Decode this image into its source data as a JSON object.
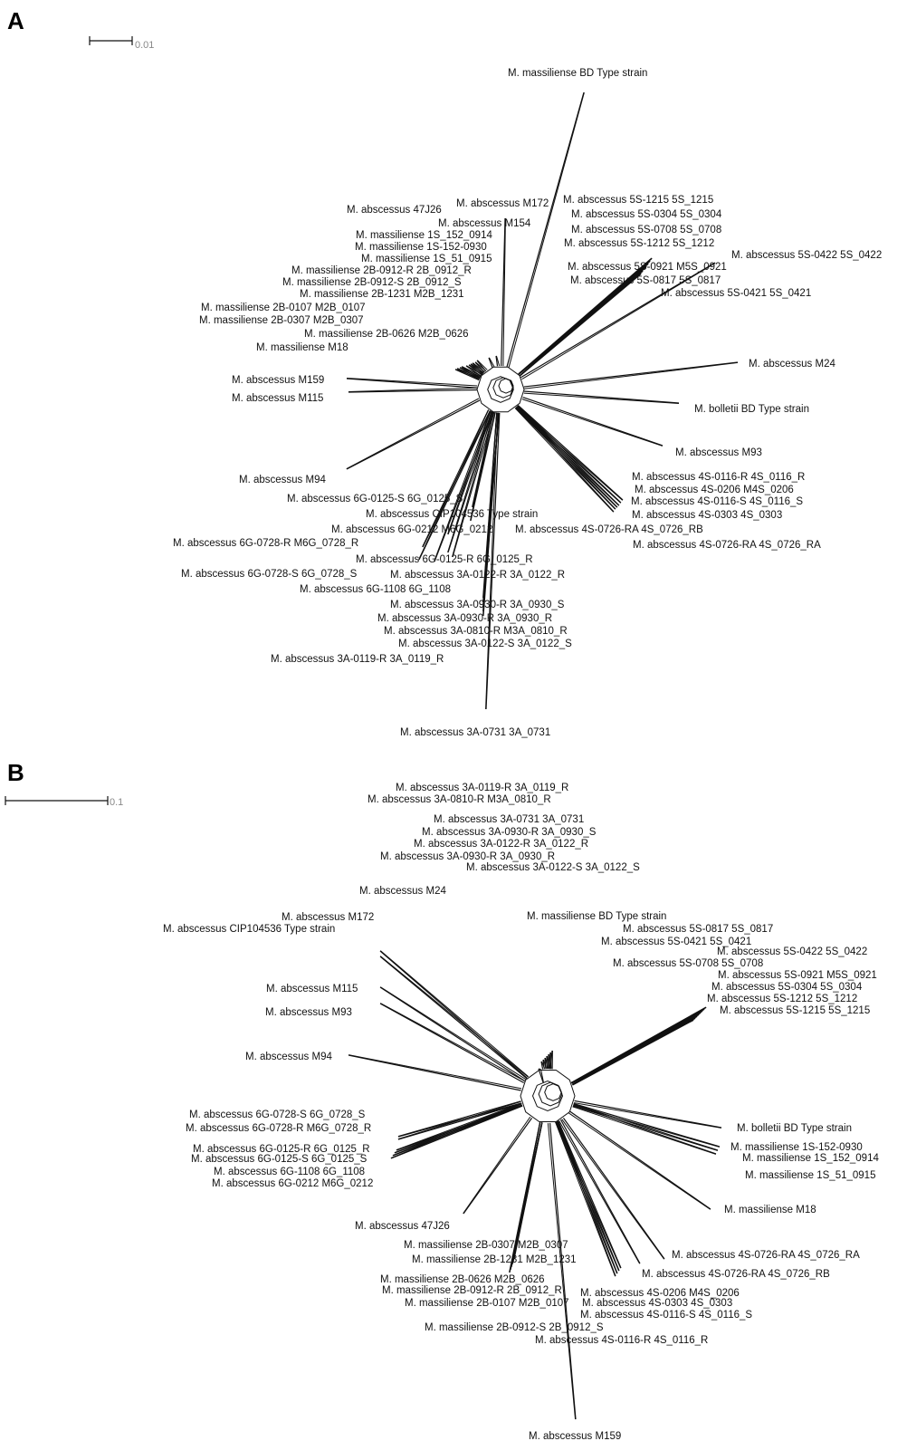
{
  "panels": [
    {
      "letter": "A",
      "scale_label": "0.01",
      "labels": [
        "M. massiliense BD Type strain",
        "M. abscessus M172",
        "M. abscessus 47J26",
        "M. abscessus M154",
        "M. massiliense 1S_152_0914",
        "M. massiliense 1S-152-0930",
        "M. massiliense 1S_51_0915",
        "M. massiliense 2B-0912-R 2B_0912_R",
        "M. massiliense 2B-0912-S 2B_0912_S",
        "M. massiliense 2B-1231 M2B_1231",
        "M. massiliense 2B-0107 M2B_0107",
        "M. massiliense 2B-0307 M2B_0307",
        "M. massiliense 2B-0626 M2B_0626",
        "M. massiliense M18",
        "M. abscessus M159",
        "M. abscessus M115",
        "M. abscessus 5S-1215 5S_1215",
        "M. abscessus 5S-0304 5S_0304",
        "M. abscessus 5S-0708 5S_0708",
        "M. abscessus 5S-1212 5S_1212",
        "M. abscessus 5S-0422 5S_0422",
        "M. abscessus 5S-0921 M5S_0921",
        "M. abscessus 5S-0817 5S_0817",
        "M. abscessus 5S-0421 5S_0421",
        "M. abscessus M24",
        "M. bolletii BD Type strain",
        "M. abscessus M93",
        "M. abscessus M94",
        "M. abscessus 4S-0116-R 4S_0116_R",
        "M. abscessus 4S-0206 M4S_0206",
        "M. abscessus 4S-0116-S 4S_0116_S",
        "M. abscessus 6G-0125-S 6G_0125_S",
        "M. abscessus CIP104536 Type strain",
        "M. abscessus 4S-0303 4S_0303",
        "M. abscessus 6G-0212 M6G_0212",
        "M. abscessus 4S-0726-RA 4S_0726_RB",
        "M. abscessus 6G-0728-R M6G_0728_R",
        "M. abscessus 4S-0726-RA 4S_0726_RA",
        "M. abscessus 6G-0125-R 6G_0125_R",
        "M. abscessus 6G-0728-S 6G_0728_S",
        "M. abscessus 3A-0122-R 3A_0122_R",
        "M. abscessus 6G-1108 6G_1108",
        "M. abscessus 3A-0930-R 3A_0930_S",
        "M. abscessus 3A-0930-R 3A_0930_R",
        "M. abscessus 3A-0810-R M3A_0810_R",
        "M. abscessus  3A-0122-S 3A_0122_S",
        "M. abscessus 3A-0119-R 3A_0119_R",
        "M. abscessus 3A-0731 3A_0731"
      ]
    },
    {
      "letter": "B",
      "scale_label": "0.1",
      "labels": [
        "M. abscessus 3A-0119-R 3A_0119_R",
        "M. abscessus 3A-0810-R M3A_0810_R",
        "M. abscessus 3A-0731 3A_0731",
        "M. abscessus 3A-0930-R 3A_0930_S",
        "M. abscessus 3A-0122-R 3A_0122_R",
        "M. abscessus 3A-0930-R 3A_0930_R",
        "M. abscessus  3A-0122-S 3A_0122_S",
        "M. abscessus M24",
        "M. abscessus M172",
        "M. massiliense BD Type strain",
        "M. abscessus CIP104536 Type strain",
        "M. abscessus 5S-0817 5S_0817",
        "M. abscessus 5S-0421 5S_0421",
        "M. abscessus 5S-0422 5S_0422",
        "M. abscessus 5S-0708 5S_0708",
        "M. abscessus 5S-0921 M5S_0921",
        "M. abscessus 5S-0304 5S_0304",
        "M. abscessus M115",
        "M. abscessus 5S-1212 5S_1212",
        "M. abscessus 5S-1215 5S_1215",
        "M. abscessus M93",
        "M. abscessus M94",
        "M. abscessus 6G-0728-S 6G_0728_S",
        "M. abscessus 6G-0728-R M6G_0728_R",
        "M. bolletii BD Type strain",
        "M. massiliense 1S-152-0930",
        "M. abscessus 6G-0125-R 6G_0125_R",
        "M. massiliense 1S_152_0914",
        "M. abscessus 6G-0125-S 6G_0125_S",
        "M. abscessus 6G-1108 6G_1108",
        "M. massiliense 1S_51_0915",
        "M. abscessus 6G-0212 M6G_0212",
        "M. massiliense M18",
        "M. abscessus 47J26",
        "M. massiliense 2B-0307 M2B_0307",
        "M. abscessus 4S-0726-RA 4S_0726_RA",
        "M. massiliense 2B-1231 M2B_1231",
        "M. abscessus 4S-0726-RA 4S_0726_RB",
        "M. massiliense 2B-0626 M2B_0626",
        "M. abscessus 4S-0206 M4S_0206",
        "M. massiliense 2B-0912-R 2B_0912_R",
        "M. abscessus 4S-0303 4S_0303",
        "M. massiliense 2B-0107 M2B_0107",
        "M. abscessus 4S-0116-S 4S_0116_S",
        "M. massiliense 2B-0912-S 2B_0912_S",
        "M. abscessus 4S-0116-R 4S_0116_R",
        "M. abscessus M159"
      ]
    }
  ]
}
